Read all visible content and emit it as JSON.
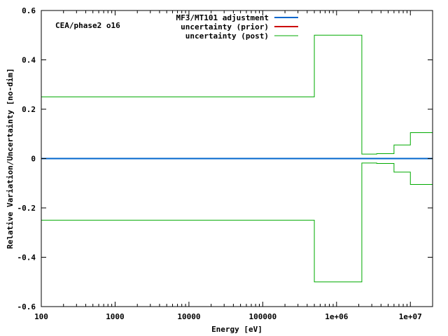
{
  "chart_data": {
    "type": "line",
    "title": "",
    "annotation": "CEA/phase2 o16",
    "xlabel": "Energy [eV]",
    "ylabel": "Relative Variation/Uncertainty [no-dim]",
    "x_scale": "log",
    "xlim": [
      100,
      20000000
    ],
    "ylim": [
      -0.6,
      0.6
    ],
    "x_ticks": [
      {
        "value": 100,
        "label": "100"
      },
      {
        "value": 1000,
        "label": "1000"
      },
      {
        "value": 10000,
        "label": "10000"
      },
      {
        "value": 100000,
        "label": "100000"
      },
      {
        "value": 1000000,
        "label": "1e+06"
      },
      {
        "value": 10000000,
        "label": "1e+07"
      }
    ],
    "y_ticks": [
      {
        "value": -0.6,
        "label": "-0.6"
      },
      {
        "value": -0.4,
        "label": "-0.4"
      },
      {
        "value": -0.2,
        "label": "-0.2"
      },
      {
        "value": 0,
        "label": "0"
      },
      {
        "value": 0.2,
        "label": "0.2"
      },
      {
        "value": 0.4,
        "label": "0.4"
      },
      {
        "value": 0.6,
        "label": "0.6"
      }
    ],
    "legend_position": "top-center",
    "series": [
      {
        "name": "MF3/MT101 adjustment",
        "color": "#0066cc",
        "style": "line",
        "x": [
          100,
          20000000
        ],
        "y": [
          0,
          0
        ]
      },
      {
        "name": "uncertainty (prior)",
        "color": "#cc0000",
        "style": "line",
        "x": [],
        "y": []
      },
      {
        "name": "uncertainty (post)",
        "color": "#00aa00",
        "style": "step",
        "bin_edges": [
          100,
          500000,
          2200000,
          3500000,
          6000000,
          10000000,
          20000000
        ],
        "upper": [
          0.25,
          0.5,
          0.018,
          0.02,
          0.055,
          0.105
        ],
        "lower": [
          -0.25,
          -0.5,
          -0.018,
          -0.02,
          -0.055,
          -0.105
        ]
      }
    ]
  }
}
